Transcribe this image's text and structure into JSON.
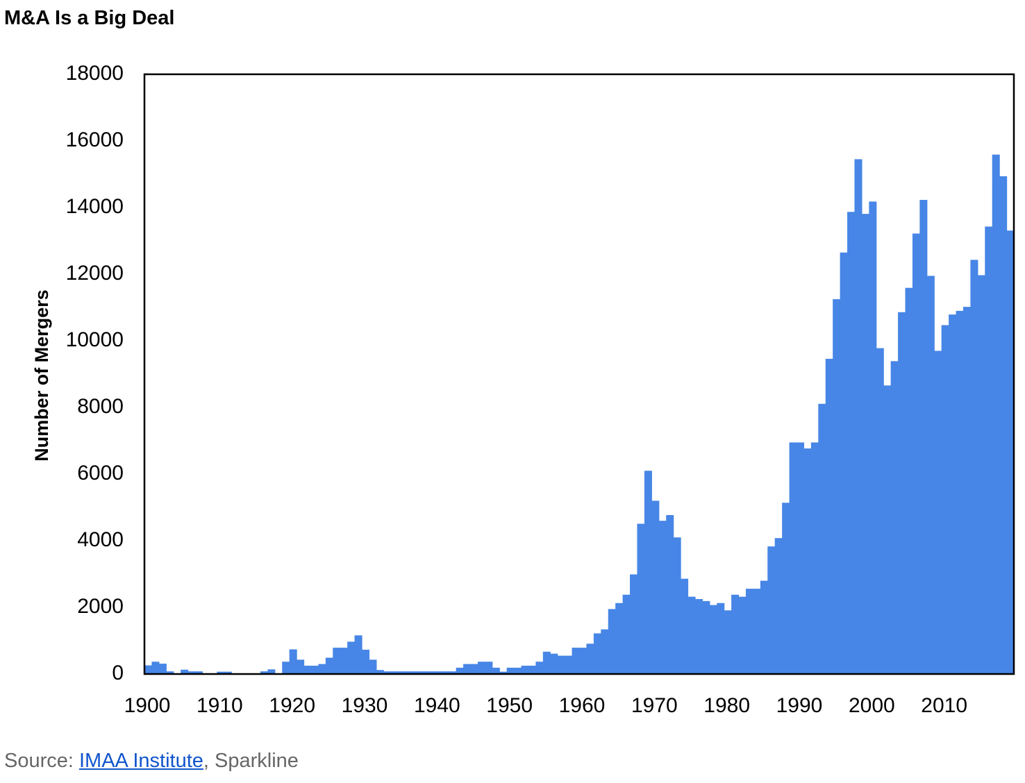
{
  "title": "M&A Is a Big Deal",
  "source": {
    "prefix": "Source: ",
    "link_text": "IMAA Institute",
    "suffix": ", Sparkline"
  },
  "chart_data": {
    "type": "bar",
    "title": "",
    "ylabel": "Number of Mergers",
    "xlabel": "",
    "ylim": [
      0,
      18000
    ],
    "yticks": [
      0,
      2000,
      4000,
      6000,
      8000,
      10000,
      12000,
      14000,
      16000,
      18000
    ],
    "xticks": [
      1900,
      1910,
      1920,
      1930,
      1940,
      1950,
      1960,
      1970,
      1980,
      1990,
      2000,
      2010
    ],
    "xlim": [
      1900,
      2020
    ],
    "bar_color": "#4786e6",
    "categories": [
      1900,
      1901,
      1902,
      1903,
      1904,
      1905,
      1906,
      1907,
      1908,
      1909,
      1910,
      1911,
      1912,
      1913,
      1914,
      1915,
      1916,
      1917,
      1918,
      1919,
      1920,
      1921,
      1922,
      1923,
      1924,
      1925,
      1926,
      1927,
      1928,
      1929,
      1930,
      1931,
      1932,
      1933,
      1934,
      1935,
      1936,
      1937,
      1938,
      1939,
      1940,
      1941,
      1942,
      1943,
      1944,
      1945,
      1946,
      1947,
      1948,
      1949,
      1950,
      1951,
      1952,
      1953,
      1954,
      1955,
      1956,
      1957,
      1958,
      1959,
      1960,
      1961,
      1962,
      1963,
      1964,
      1965,
      1966,
      1967,
      1968,
      1969,
      1970,
      1971,
      1972,
      1973,
      1974,
      1975,
      1976,
      1977,
      1978,
      1979,
      1980,
      1981,
      1982,
      1983,
      1984,
      1985,
      1986,
      1987,
      1988,
      1989,
      1990,
      1991,
      1992,
      1993,
      1994,
      1995,
      1996,
      1997,
      1998,
      1999,
      2000,
      2001,
      2002,
      2003,
      2004,
      2005,
      2006,
      2007,
      2008,
      2009,
      2010,
      2011,
      2012,
      2013,
      2014,
      2015,
      2016,
      2017,
      2018,
      2019
    ],
    "values": [
      260,
      370,
      310,
      80,
      0,
      130,
      80,
      80,
      0,
      0,
      70,
      70,
      0,
      0,
      0,
      0,
      80,
      140,
      0,
      370,
      740,
      430,
      250,
      250,
      300,
      490,
      790,
      790,
      970,
      1160,
      730,
      430,
      120,
      80,
      80,
      80,
      80,
      80,
      80,
      80,
      80,
      80,
      80,
      190,
      300,
      300,
      370,
      370,
      190,
      70,
      190,
      190,
      250,
      250,
      370,
      670,
      610,
      550,
      550,
      790,
      790,
      910,
      1220,
      1340,
      1950,
      2130,
      2380,
      2990,
      4510,
      6100,
      5200,
      4600,
      4770,
      4100,
      2860,
      2320,
      2250,
      2190,
      2070,
      2130,
      1910,
      2380,
      2320,
      2560,
      2560,
      2800,
      3830,
      4080,
      5140,
      6950,
      6950,
      6770,
      6950,
      8110,
      9460,
      11250,
      12650,
      13870,
      15450,
      13810,
      14180,
      9780,
      8660,
      9390,
      10860,
      11590,
      13220,
      14230,
      11950,
      9700,
      10470,
      10790,
      10900,
      11020,
      12430,
      11970,
      13430,
      15590,
      14940,
      13310
    ]
  }
}
